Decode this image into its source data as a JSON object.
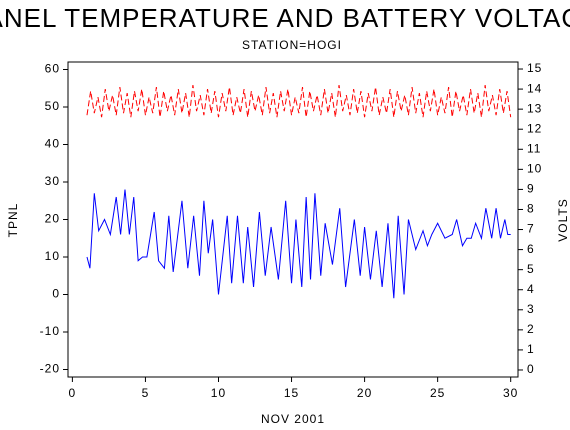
{
  "chart_data": {
    "type": "line",
    "title": "PANEL TEMPERATURE AND BATTERY VOLTAGE",
    "subtitle": "STATION=HOGI",
    "x_label": "NOV 2001",
    "y_label": "TPNL",
    "y2_label": "VOLTS",
    "xlim": [
      -0.3,
      30.5
    ],
    "xticks": [
      0,
      5,
      10,
      15,
      20,
      25,
      30
    ],
    "ylim": [
      -22,
      62
    ],
    "yticks": [
      -20,
      -10,
      0,
      10,
      20,
      30,
      40,
      50,
      60
    ],
    "y2lim": [
      -0.35,
      15.35
    ],
    "y2ticks": [
      0,
      1,
      2,
      3,
      4,
      5,
      6,
      7,
      8,
      9,
      10,
      11,
      12,
      13,
      14,
      15
    ],
    "series": [
      {
        "color": "#0000ff",
        "line_style": "solid",
        "x": [
          1,
          1.2,
          1.5,
          1.8,
          2.2,
          2.6,
          3,
          3.3,
          3.6,
          3.9,
          4.2,
          4.5,
          4.8,
          5.1,
          5.6,
          5.9,
          6.3,
          6.6,
          6.9,
          7.5,
          7.9,
          8.3,
          8.7,
          9,
          9.3,
          9.6,
          10,
          10.6,
          10.9,
          11.3,
          11.7,
          12,
          12.4,
          12.8,
          13.2,
          13.6,
          14.1,
          14.6,
          15,
          15.3,
          15.7,
          16,
          16.3,
          16.6,
          17,
          17.3,
          17.8,
          18.3,
          18.7,
          19.3,
          19.7,
          20,
          20.4,
          20.8,
          21.2,
          21.6,
          22,
          22.3,
          22.7,
          23,
          23.5,
          24,
          24.3,
          24.6,
          25,
          25.5,
          26,
          26.3,
          26.7,
          27,
          27.3,
          27.6,
          28,
          28.3,
          28.7,
          29,
          29.3,
          29.6,
          29.8,
          30
        ],
        "values": [
          10,
          7,
          27,
          17,
          20,
          16,
          26,
          16,
          28,
          16,
          26,
          9,
          10,
          10,
          22,
          9,
          7,
          21,
          6,
          25,
          7,
          21,
          5,
          25,
          11,
          20,
          0,
          21,
          3,
          21,
          3,
          18,
          2,
          22,
          5,
          18,
          4,
          25,
          3,
          20,
          2,
          26,
          4,
          27,
          5,
          19,
          8,
          23,
          2,
          20,
          5,
          18,
          4,
          17,
          2,
          19,
          -1,
          21,
          0,
          20,
          12,
          17,
          13,
          16,
          19,
          15,
          16,
          20,
          13,
          15,
          15,
          19,
          15,
          23,
          15,
          23,
          15,
          20,
          16,
          16
        ]
      },
      {
        "color": "#ff0000",
        "line_style": "dashed",
        "axis": "y2",
        "x": [
          1,
          1.25,
          1.5,
          1.75,
          2,
          2.25,
          2.5,
          2.75,
          3,
          3.25,
          3.5,
          3.75,
          4,
          4.25,
          4.5,
          4.75,
          5,
          5.25,
          5.5,
          5.75,
          6,
          6.25,
          6.5,
          6.75,
          7,
          7.25,
          7.5,
          7.75,
          8,
          8.25,
          8.5,
          8.75,
          9,
          9.25,
          9.5,
          9.75,
          10,
          10.25,
          10.5,
          10.75,
          11,
          11.25,
          11.5,
          11.75,
          12,
          12.25,
          12.5,
          12.75,
          13,
          13.25,
          13.5,
          13.75,
          14,
          14.25,
          14.5,
          14.75,
          15,
          15.25,
          15.5,
          15.75,
          16,
          16.25,
          16.5,
          16.75,
          17,
          17.25,
          17.5,
          17.75,
          18,
          18.25,
          18.5,
          18.75,
          19,
          19.25,
          19.5,
          19.75,
          20,
          20.25,
          20.5,
          20.75,
          21,
          21.25,
          21.5,
          21.75,
          22,
          22.25,
          22.5,
          22.75,
          23,
          23.25,
          23.5,
          23.75,
          24,
          24.25,
          24.5,
          24.75,
          25,
          25.25,
          25.5,
          25.75,
          26,
          26.25,
          26.5,
          26.75,
          27,
          27.25,
          27.5,
          27.75,
          28,
          28.25,
          28.5,
          28.75,
          29,
          29.25,
          29.5,
          29.75,
          30
        ],
        "values": [
          12.7,
          13.9,
          12.8,
          13.6,
          12.6,
          14.0,
          12.9,
          13.7,
          12.7,
          14.1,
          12.8,
          13.8,
          12.6,
          13.9,
          12.9,
          14.0,
          12.7,
          13.6,
          12.8,
          14.1,
          12.6,
          13.9,
          12.9,
          13.7,
          12.7,
          14.0,
          12.8,
          13.8,
          12.6,
          14.2,
          12.9,
          13.7,
          12.7,
          14.0,
          12.8,
          13.9,
          12.6,
          13.8,
          12.9,
          14.1,
          12.7,
          13.6,
          12.8,
          14.0,
          12.6,
          13.9,
          12.9,
          13.7,
          12.7,
          14.1,
          12.8,
          13.8,
          12.6,
          13.9,
          12.9,
          14.0,
          12.7,
          13.6,
          12.8,
          14.1,
          12.6,
          13.9,
          12.9,
          13.7,
          12.7,
          14.0,
          12.8,
          13.8,
          12.6,
          14.2,
          12.9,
          13.7,
          12.7,
          14.0,
          12.8,
          13.9,
          12.6,
          13.8,
          12.9,
          14.1,
          12.7,
          13.6,
          12.8,
          14.0,
          12.6,
          13.9,
          12.9,
          13.7,
          12.7,
          14.1,
          12.8,
          13.8,
          12.6,
          13.9,
          12.9,
          14.0,
          12.7,
          13.6,
          12.8,
          14.1,
          12.6,
          13.9,
          12.9,
          13.7,
          12.7,
          14.0,
          12.8,
          13.8,
          12.6,
          14.2,
          12.9,
          13.7,
          12.7,
          14.0,
          12.8,
          13.9,
          12.6
        ]
      }
    ]
  }
}
